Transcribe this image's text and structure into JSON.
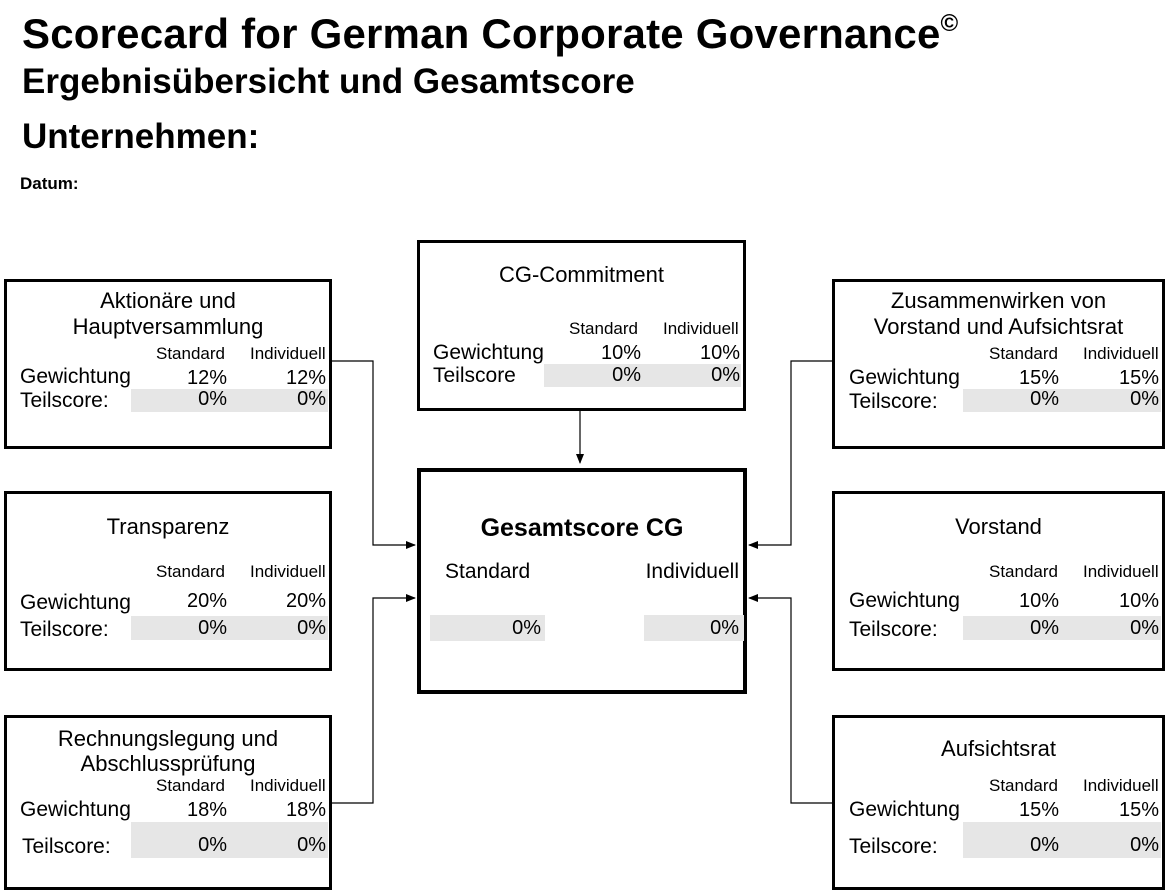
{
  "header": {
    "title": "Scorecard for German Corporate Governance",
    "copyright": "©",
    "subtitle": "Ergebnisübersicht und Gesamtscore",
    "company_label": "Unternehmen:",
    "date_label": "Datum:"
  },
  "columns": {
    "standard": "Standard",
    "individuell": "Individuell"
  },
  "rows": {
    "weight": "Gewichtung",
    "score": "Teilscore:",
    "score_no_colon": "Teilscore"
  },
  "boxes": {
    "aktionaere": {
      "title1": "Aktionäre und",
      "title2": "Hauptversammlung",
      "weight_std": "12%",
      "weight_ind": "12%",
      "score_std": "0%",
      "score_ind": "0%"
    },
    "commitment": {
      "title": "CG-Commitment",
      "weight_std": "10%",
      "weight_ind": "10%",
      "score_std": "0%",
      "score_ind": "0%"
    },
    "zusammenwirken": {
      "title1": "Zusammenwirken von",
      "title2": "Vorstand und Aufsichtsrat",
      "weight_std": "15%",
      "weight_ind": "15%",
      "score_std": "0%",
      "score_ind": "0%"
    },
    "transparenz": {
      "title": "Transparenz",
      "weight_std": "20%",
      "weight_ind": "20%",
      "score_std": "0%",
      "score_ind": "0%"
    },
    "vorstand": {
      "title": "Vorstand",
      "weight_std": "10%",
      "weight_ind": "10%",
      "score_std": "0%",
      "score_ind": "0%"
    },
    "rechnungslegung": {
      "title1": "Rechnungslegung und",
      "title2": "Abschlussprüfung",
      "weight_std": "18%",
      "weight_ind": "18%",
      "score_std": "0%",
      "score_ind": "0%"
    },
    "aufsichtsrat": {
      "title": "Aufsichtsrat",
      "weight_std": "15%",
      "weight_ind": "15%",
      "score_std": "0%",
      "score_ind": "0%"
    }
  },
  "total": {
    "title": "Gesamtscore CG",
    "standard_label": "Standard",
    "individuell_label": "Individuell",
    "score_std": "0%",
    "score_ind": "0%"
  },
  "colors": {
    "shade": "#e6e6e6",
    "line": "#000000"
  }
}
